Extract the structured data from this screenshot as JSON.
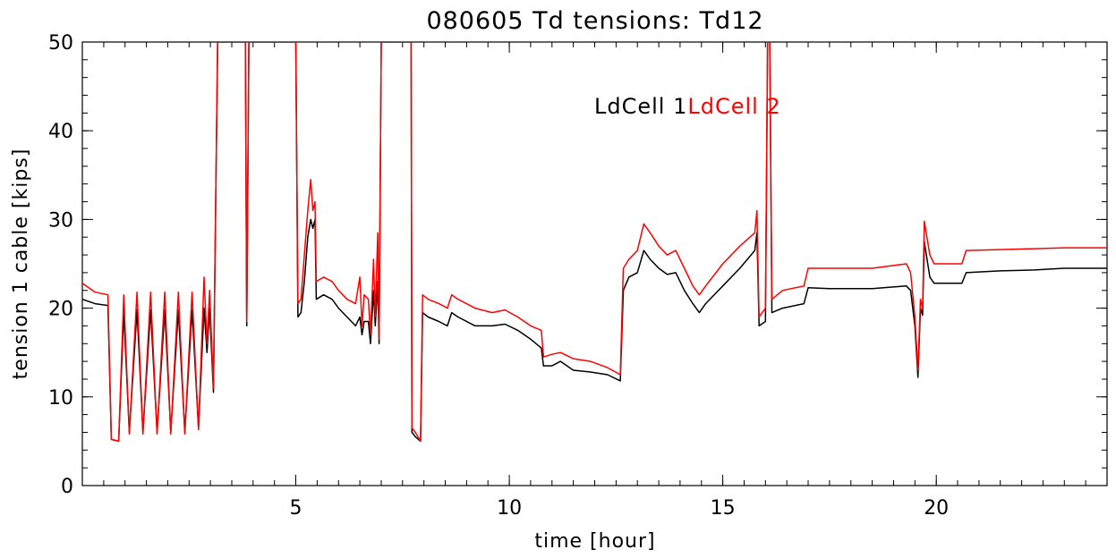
{
  "chart_data": {
    "type": "line",
    "title": "080605 Td tensions: Td12",
    "xlabel": "time [hour]",
    "ylabel": "tension 1 cable [kips]",
    "xlim": [
      0,
      24
    ],
    "ylim": [
      0,
      50
    ],
    "x_ticks": [
      5,
      10,
      15,
      20
    ],
    "y_ticks": [
      0,
      10,
      20,
      30,
      40,
      50
    ],
    "x_minor_step": 0.5,
    "y_minor_step": 2,
    "grid": false,
    "legend_position": "top-right",
    "series": [
      {
        "name": "LdCell 1",
        "color": "#000000",
        "points": [
          [
            0.0,
            21.0
          ],
          [
            0.3,
            20.5
          ],
          [
            0.6,
            20.3
          ],
          [
            0.68,
            5.2
          ],
          [
            0.85,
            5.0
          ],
          [
            0.97,
            19.5
          ],
          [
            1.1,
            6.0
          ],
          [
            1.28,
            19.8
          ],
          [
            1.42,
            6.0
          ],
          [
            1.6,
            19.8
          ],
          [
            1.75,
            6.0
          ],
          [
            1.93,
            19.8
          ],
          [
            2.07,
            6.0
          ],
          [
            2.25,
            19.8
          ],
          [
            2.4,
            6.0
          ],
          [
            2.57,
            19.8
          ],
          [
            2.72,
            6.5
          ],
          [
            2.85,
            20.0
          ],
          [
            2.92,
            15.0
          ],
          [
            2.98,
            20.0
          ],
          [
            3.07,
            10.5
          ],
          [
            3.12,
            30.0
          ],
          [
            3.17,
            50.0
          ],
          [
            3.3,
            50.0
          ],
          [
            3.6,
            50.0
          ],
          [
            3.82,
            50.0
          ],
          [
            3.85,
            18.0
          ],
          [
            3.9,
            50.0
          ],
          [
            4.2,
            50.0
          ],
          [
            4.6,
            50.0
          ],
          [
            5.0,
            50.0
          ],
          [
            5.05,
            19.0
          ],
          [
            5.12,
            19.5
          ],
          [
            5.2,
            23.0
          ],
          [
            5.28,
            28.0
          ],
          [
            5.35,
            30.0
          ],
          [
            5.4,
            29.0
          ],
          [
            5.45,
            30.0
          ],
          [
            5.48,
            21.0
          ],
          [
            5.65,
            21.5
          ],
          [
            5.85,
            21.0
          ],
          [
            6.0,
            20.0
          ],
          [
            6.2,
            19.0
          ],
          [
            6.4,
            18.0
          ],
          [
            6.5,
            19.0
          ],
          [
            6.55,
            17.0
          ],
          [
            6.6,
            18.5
          ],
          [
            6.7,
            18.5
          ],
          [
            6.75,
            16.0
          ],
          [
            6.82,
            22.0
          ],
          [
            6.86,
            18.0
          ],
          [
            6.92,
            23.0
          ],
          [
            6.95,
            16.0
          ],
          [
            7.0,
            50.0
          ],
          [
            7.3,
            50.0
          ],
          [
            7.7,
            50.0
          ],
          [
            7.72,
            6.0
          ],
          [
            7.8,
            5.5
          ],
          [
            7.92,
            5.0
          ],
          [
            7.97,
            19.5
          ],
          [
            8.1,
            19.0
          ],
          [
            8.35,
            18.5
          ],
          [
            8.55,
            18.0
          ],
          [
            8.65,
            19.5
          ],
          [
            8.8,
            19.0
          ],
          [
            9.2,
            18.0
          ],
          [
            9.6,
            18.0
          ],
          [
            9.9,
            18.2
          ],
          [
            10.2,
            17.5
          ],
          [
            10.5,
            16.5
          ],
          [
            10.75,
            15.5
          ],
          [
            10.8,
            13.5
          ],
          [
            11.0,
            13.5
          ],
          [
            11.2,
            14.0
          ],
          [
            11.5,
            13.0
          ],
          [
            11.9,
            12.8
          ],
          [
            12.3,
            12.5
          ],
          [
            12.6,
            11.8
          ],
          [
            12.67,
            22.0
          ],
          [
            12.8,
            23.5
          ],
          [
            13.0,
            24.0
          ],
          [
            13.15,
            26.5
          ],
          [
            13.3,
            25.5
          ],
          [
            13.5,
            24.5
          ],
          [
            13.7,
            23.8
          ],
          [
            13.9,
            24.0
          ],
          [
            14.1,
            22.0
          ],
          [
            14.3,
            20.5
          ],
          [
            14.45,
            19.5
          ],
          [
            14.6,
            20.5
          ],
          [
            15.0,
            22.5
          ],
          [
            15.4,
            24.5
          ],
          [
            15.75,
            26.5
          ],
          [
            15.8,
            28.5
          ],
          [
            15.85,
            18.0
          ],
          [
            16.0,
            18.5
          ],
          [
            16.05,
            50.0
          ],
          [
            16.1,
            50.0
          ],
          [
            16.15,
            19.5
          ],
          [
            16.4,
            20.0
          ],
          [
            16.9,
            20.5
          ],
          [
            17.0,
            22.3
          ],
          [
            17.5,
            22.2
          ],
          [
            18.5,
            22.2
          ],
          [
            19.3,
            22.5
          ],
          [
            19.4,
            22.0
          ],
          [
            19.5,
            18.0
          ],
          [
            19.57,
            12.2
          ],
          [
            19.63,
            20.0
          ],
          [
            19.68,
            19.2
          ],
          [
            19.72,
            27.5
          ],
          [
            19.85,
            23.5
          ],
          [
            19.95,
            22.8
          ],
          [
            20.6,
            22.8
          ],
          [
            20.7,
            24.0
          ],
          [
            21.5,
            24.2
          ],
          [
            22.3,
            24.3
          ],
          [
            23.0,
            24.5
          ],
          [
            23.5,
            24.5
          ],
          [
            24.0,
            24.5
          ]
        ]
      },
      {
        "name": "LdCell 2",
        "color": "#ff0000",
        "points": [
          [
            0.0,
            22.8
          ],
          [
            0.3,
            21.8
          ],
          [
            0.6,
            21.5
          ],
          [
            0.68,
            5.2
          ],
          [
            0.85,
            5.0
          ],
          [
            0.97,
            21.5
          ],
          [
            1.1,
            5.8
          ],
          [
            1.28,
            21.8
          ],
          [
            1.42,
            5.8
          ],
          [
            1.6,
            21.8
          ],
          [
            1.75,
            5.8
          ],
          [
            1.93,
            21.8
          ],
          [
            2.07,
            5.8
          ],
          [
            2.25,
            21.8
          ],
          [
            2.4,
            5.8
          ],
          [
            2.57,
            21.8
          ],
          [
            2.72,
            6.3
          ],
          [
            2.85,
            23.5
          ],
          [
            2.92,
            16.0
          ],
          [
            2.98,
            22.0
          ],
          [
            3.07,
            11.0
          ],
          [
            3.12,
            30.0
          ],
          [
            3.17,
            50.0
          ],
          [
            3.3,
            50.0
          ],
          [
            3.6,
            50.0
          ],
          [
            3.82,
            50.0
          ],
          [
            3.85,
            18.5
          ],
          [
            3.9,
            50.0
          ],
          [
            4.2,
            50.0
          ],
          [
            4.6,
            50.0
          ],
          [
            5.0,
            50.0
          ],
          [
            5.05,
            20.5
          ],
          [
            5.12,
            21.0
          ],
          [
            5.2,
            26.0
          ],
          [
            5.28,
            31.0
          ],
          [
            5.35,
            34.5
          ],
          [
            5.4,
            31.0
          ],
          [
            5.45,
            32.0
          ],
          [
            5.48,
            23.0
          ],
          [
            5.65,
            23.5
          ],
          [
            5.85,
            23.0
          ],
          [
            6.0,
            22.0
          ],
          [
            6.2,
            21.0
          ],
          [
            6.4,
            20.5
          ],
          [
            6.5,
            23.5
          ],
          [
            6.55,
            18.0
          ],
          [
            6.6,
            21.5
          ],
          [
            6.7,
            21.0
          ],
          [
            6.75,
            17.0
          ],
          [
            6.82,
            25.5
          ],
          [
            6.86,
            19.0
          ],
          [
            6.92,
            28.5
          ],
          [
            6.95,
            16.5
          ],
          [
            7.0,
            50.0
          ],
          [
            7.3,
            50.0
          ],
          [
            7.7,
            50.0
          ],
          [
            7.72,
            6.5
          ],
          [
            7.8,
            6.0
          ],
          [
            7.92,
            5.0
          ],
          [
            7.97,
            21.5
          ],
          [
            8.1,
            21.0
          ],
          [
            8.35,
            20.5
          ],
          [
            8.55,
            20.0
          ],
          [
            8.65,
            21.5
          ],
          [
            8.8,
            21.0
          ],
          [
            9.2,
            20.0
          ],
          [
            9.6,
            19.5
          ],
          [
            9.9,
            19.8
          ],
          [
            10.2,
            19.0
          ],
          [
            10.5,
            18.0
          ],
          [
            10.75,
            17.5
          ],
          [
            10.8,
            14.5
          ],
          [
            11.0,
            14.8
          ],
          [
            11.2,
            15.0
          ],
          [
            11.5,
            14.3
          ],
          [
            11.9,
            14.0
          ],
          [
            12.3,
            13.3
          ],
          [
            12.6,
            12.5
          ],
          [
            12.67,
            24.5
          ],
          [
            12.8,
            25.5
          ],
          [
            13.0,
            26.5
          ],
          [
            13.15,
            29.5
          ],
          [
            13.3,
            28.5
          ],
          [
            13.5,
            27.0
          ],
          [
            13.7,
            26.0
          ],
          [
            13.9,
            26.5
          ],
          [
            14.1,
            24.5
          ],
          [
            14.3,
            22.5
          ],
          [
            14.45,
            21.5
          ],
          [
            14.6,
            22.5
          ],
          [
            15.0,
            25.0
          ],
          [
            15.4,
            27.0
          ],
          [
            15.75,
            28.5
          ],
          [
            15.8,
            31.0
          ],
          [
            15.85,
            19.0
          ],
          [
            16.0,
            20.0
          ],
          [
            16.05,
            50.0
          ],
          [
            16.1,
            50.0
          ],
          [
            16.15,
            21.0
          ],
          [
            16.4,
            22.0
          ],
          [
            16.9,
            22.5
          ],
          [
            17.0,
            24.5
          ],
          [
            17.5,
            24.5
          ],
          [
            18.5,
            24.5
          ],
          [
            19.3,
            25.0
          ],
          [
            19.4,
            24.0
          ],
          [
            19.5,
            19.0
          ],
          [
            19.57,
            13.0
          ],
          [
            19.63,
            21.0
          ],
          [
            19.68,
            20.0
          ],
          [
            19.72,
            29.8
          ],
          [
            19.85,
            26.0
          ],
          [
            19.95,
            25.0
          ],
          [
            20.6,
            25.0
          ],
          [
            20.7,
            26.5
          ],
          [
            21.5,
            26.6
          ],
          [
            22.3,
            26.7
          ],
          [
            23.0,
            26.8
          ],
          [
            23.5,
            26.8
          ],
          [
            24.0,
            26.8
          ]
        ]
      }
    ]
  }
}
